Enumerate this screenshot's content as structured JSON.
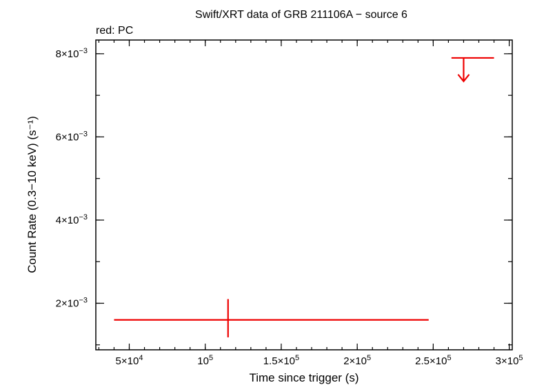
{
  "chart_data": {
    "type": "scatter",
    "title": "Swift/XRT data of GRB 211106A − source 6",
    "subtitle": "red: PC",
    "xlabel": "Time since trigger (s)",
    "ylabel": "Count Rate (0.3−10 keV) (s⁻¹)",
    "xlim": [
      28000,
      302000
    ],
    "ylim": [
      0.00088,
      0.00833
    ],
    "x_ticks": [
      {
        "value": 50000,
        "mant": "5×10",
        "exp": "4"
      },
      {
        "value": 100000,
        "mant": "10",
        "exp": "5"
      },
      {
        "value": 150000,
        "mant": "1.5×10",
        "exp": "5"
      },
      {
        "value": 200000,
        "mant": "2×10",
        "exp": "5"
      },
      {
        "value": 250000,
        "mant": "2.5×10",
        "exp": "5"
      },
      {
        "value": 300000,
        "mant": "3×10",
        "exp": "5"
      }
    ],
    "y_ticks": [
      {
        "value": 0.002,
        "mant": "2×10",
        "exp": "−3"
      },
      {
        "value": 0.004,
        "mant": "4×10",
        "exp": "−3"
      },
      {
        "value": 0.006,
        "mant": "6×10",
        "exp": "−3"
      },
      {
        "value": 0.008,
        "mant": "8×10",
        "exp": "−3"
      }
    ],
    "x_minor_step": 10000,
    "y_minor_step": 0.001,
    "grid": false,
    "series": [
      {
        "name": "PC",
        "color": "#ee0000",
        "points": [
          {
            "x": 115000,
            "x_low": 40000,
            "x_high": 247000,
            "y": 0.0016,
            "y_low": 0.00118,
            "y_high": 0.0021
          }
        ],
        "upper_limits": [
          {
            "x": 270000,
            "x_low": 262000,
            "x_high": 290000,
            "y": 0.0079
          }
        ]
      }
    ]
  }
}
